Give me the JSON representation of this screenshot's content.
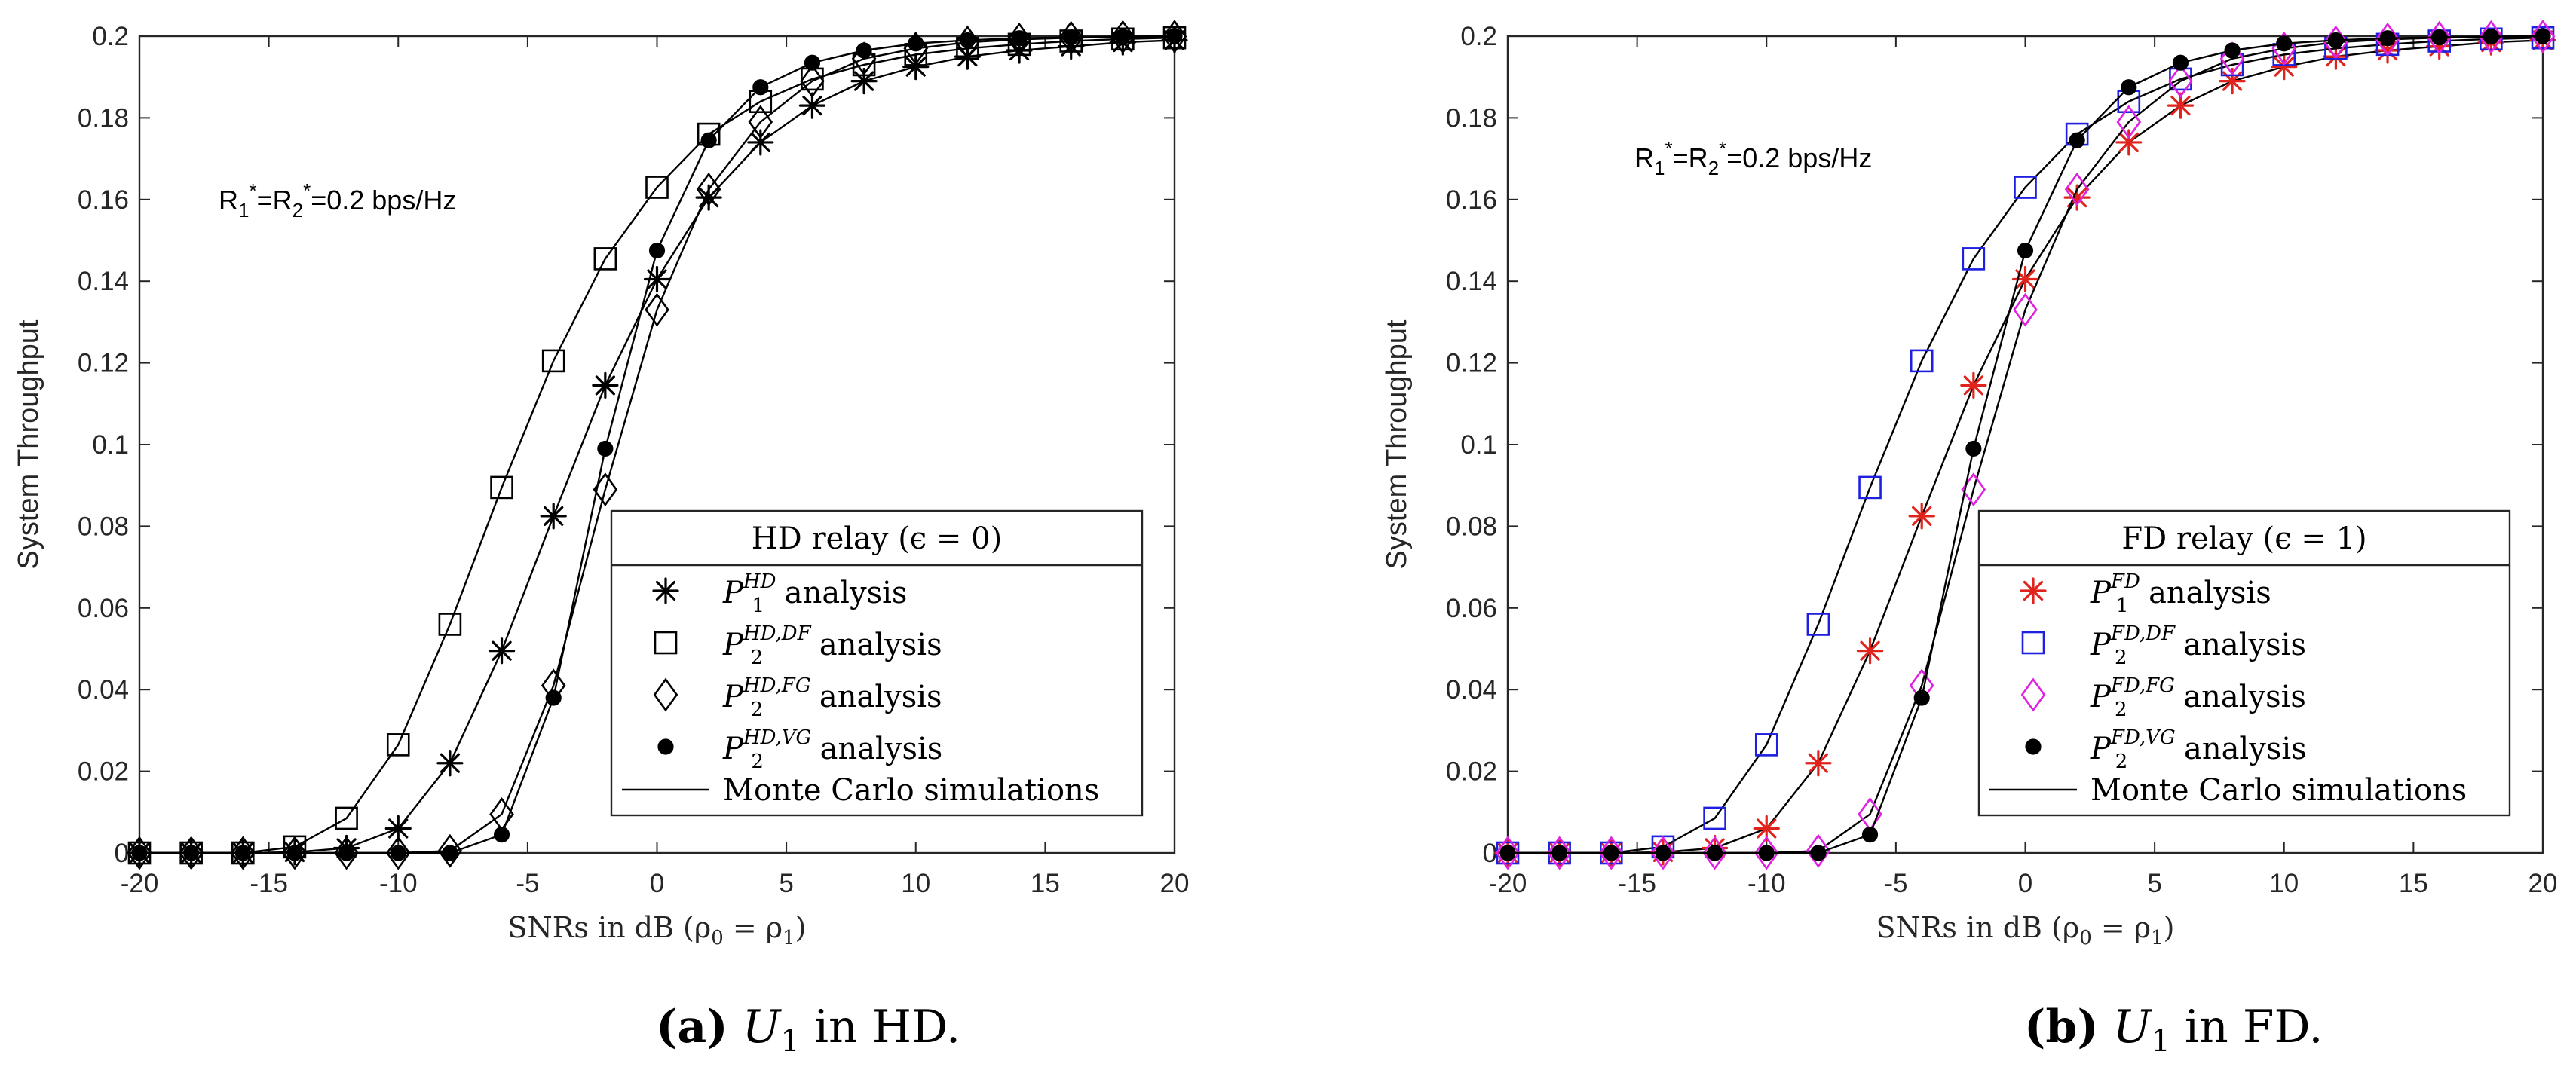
{
  "chart_data": [
    {
      "type": "line",
      "xlabel": "SNRs in dB (ρ",
      "xlabel_sub0": "0",
      "xlabel_mid": " = ρ",
      "xlabel_sub1": "1",
      "xlabel_end": ")",
      "ylabel": "System Throughput",
      "xlim": [
        -20,
        20
      ],
      "ylim": [
        0,
        0.2
      ],
      "xticks": [
        "-20",
        "-15",
        "-10",
        "-5",
        "0",
        "5",
        "10",
        "15",
        "20"
      ],
      "yticks": [
        "0",
        "0.02",
        "0.04",
        "0.06",
        "0.08",
        "0.1",
        "0.12",
        "0.14",
        "0.16",
        "0.18",
        "0.2"
      ],
      "annotation": {
        "r1": "R",
        "sub1": "1",
        "star": "*",
        "eq": "=R",
        "sub2": "2",
        "star2": "*",
        "rest": "=0.2 bps/Hz"
      },
      "legend_title": "HD relay (ϵ = 0)",
      "legend_location": "lower-right",
      "caption_letter": "(a)",
      "caption_var": "U",
      "caption_sub": "1",
      "caption_rest": " in HD.",
      "x": [
        -20,
        -18,
        -16,
        -14,
        -12,
        -10,
        -8,
        -6,
        -4,
        -2,
        0,
        2,
        4,
        6,
        8,
        10,
        12,
        14,
        16,
        18,
        20
      ],
      "series": [
        {
          "name": "P1 HD analysis",
          "sym": "P",
          "sub": "1",
          "sup": "HD",
          "tail": " analysis",
          "marker": "asterisk",
          "color": "#000000",
          "values": [
            0,
            0,
            0,
            0.0002,
            0.0012,
            0.006,
            0.022,
            0.0495,
            0.0825,
            0.1145,
            0.1405,
            0.1605,
            0.174,
            0.183,
            0.189,
            0.1925,
            0.195,
            0.1965,
            0.1975,
            0.1985,
            0.199
          ]
        },
        {
          "name": "P2 HD,DF analysis",
          "sym": "P",
          "sub": "2",
          "sup": "HD,DF",
          "tail": " analysis",
          "marker": "square",
          "color": "#000000",
          "values": [
            0,
            0,
            0,
            0.0015,
            0.0085,
            0.0265,
            0.056,
            0.0895,
            0.1205,
            0.1455,
            0.163,
            0.176,
            0.184,
            0.1895,
            0.193,
            0.1955,
            0.197,
            0.198,
            0.1988,
            0.1993,
            0.1996
          ]
        },
        {
          "name": "P2 HD,FG analysis",
          "sym": "P",
          "sub": "2",
          "sup": "HD,FG",
          "tail": " analysis",
          "marker": "diamond",
          "color": "#000000",
          "values": [
            0,
            0,
            0,
            0,
            0,
            0,
            0.0005,
            0.0095,
            0.041,
            0.089,
            0.133,
            0.1625,
            0.179,
            0.189,
            0.1945,
            0.197,
            0.1985,
            0.1992,
            0.1996,
            0.1998,
            0.1999
          ]
        },
        {
          "name": "P2 HD,VG analysis",
          "sym": "P",
          "sub": "2",
          "sup": "HD,VG",
          "tail": " analysis",
          "marker": "dot",
          "color": "#000000",
          "values": [
            0,
            0,
            0,
            0,
            0,
            0,
            0,
            0.0045,
            0.038,
            0.099,
            0.1475,
            0.1745,
            0.1875,
            0.1935,
            0.1965,
            0.1982,
            0.199,
            0.1995,
            0.1997,
            0.1999,
            0.2
          ]
        }
      ],
      "sim_label": "Monte Carlo simulations"
    },
    {
      "type": "line",
      "xlabel": "SNRs in dB (ρ",
      "xlabel_sub0": "0",
      "xlabel_mid": " = ρ",
      "xlabel_sub1": "1",
      "xlabel_end": ")",
      "ylabel": "System Throughput",
      "xlim": [
        -20,
        20
      ],
      "ylim": [
        0,
        0.2
      ],
      "xticks": [
        "-20",
        "-15",
        "-10",
        "-5",
        "0",
        "5",
        "10",
        "15",
        "20"
      ],
      "yticks": [
        "0",
        "0.02",
        "0.04",
        "0.06",
        "0.08",
        "0.1",
        "0.12",
        "0.14",
        "0.16",
        "0.18",
        "0.2"
      ],
      "annotation": {
        "r1": "R",
        "sub1": "1",
        "star": "*",
        "eq": "=R",
        "sub2": "2",
        "star2": "*",
        "rest": "=0.2 bps/Hz"
      },
      "legend_title": "FD relay (ϵ = 1)",
      "legend_location": "lower-right",
      "caption_letter": "(b)",
      "caption_var": "U",
      "caption_sub": "1",
      "caption_rest": " in FD.",
      "x": [
        -20,
        -18,
        -16,
        -14,
        -12,
        -10,
        -8,
        -6,
        -4,
        -2,
        0,
        2,
        4,
        6,
        8,
        10,
        12,
        14,
        16,
        18,
        20
      ],
      "series": [
        {
          "name": "P1 FD analysis",
          "sym": "P",
          "sub": "1",
          "sup": "FD",
          "tail": " analysis",
          "marker": "asterisk",
          "color": "#e0231c",
          "values": [
            0,
            0,
            0,
            0.0002,
            0.0012,
            0.006,
            0.022,
            0.0495,
            0.0825,
            0.1145,
            0.1405,
            0.1605,
            0.174,
            0.183,
            0.189,
            0.1925,
            0.195,
            0.1965,
            0.1975,
            0.1985,
            0.199
          ]
        },
        {
          "name": "P2 FD,DF analysis",
          "sym": "P",
          "sub": "2",
          "sup": "FD,DF",
          "tail": " analysis",
          "marker": "square",
          "color": "#1f1fe0",
          "values": [
            0,
            0,
            0,
            0.0015,
            0.0085,
            0.0265,
            0.056,
            0.0895,
            0.1205,
            0.1455,
            0.163,
            0.176,
            0.184,
            0.1895,
            0.193,
            0.1955,
            0.197,
            0.198,
            0.1988,
            0.1993,
            0.1996
          ]
        },
        {
          "name": "P2 FD,FG analysis",
          "sym": "P",
          "sub": "2",
          "sup": "FD,FG",
          "tail": " analysis",
          "marker": "diamond",
          "color": "#e020e0",
          "values": [
            0,
            0,
            0,
            0,
            0,
            0,
            0.0005,
            0.0095,
            0.041,
            0.089,
            0.133,
            0.1625,
            0.179,
            0.189,
            0.1945,
            0.197,
            0.1985,
            0.1992,
            0.1996,
            0.1998,
            0.1999
          ]
        },
        {
          "name": "P2 FD,VG analysis",
          "sym": "P",
          "sub": "2",
          "sup": "FD,VG",
          "tail": " analysis",
          "marker": "dot",
          "color": "#000000",
          "values": [
            0,
            0,
            0,
            0,
            0,
            0,
            0,
            0.0045,
            0.038,
            0.099,
            0.1475,
            0.1745,
            0.1875,
            0.1935,
            0.1965,
            0.1982,
            0.199,
            0.1995,
            0.1997,
            0.1999,
            0.2
          ]
        }
      ],
      "sim_label": "Monte Carlo simulations"
    }
  ]
}
